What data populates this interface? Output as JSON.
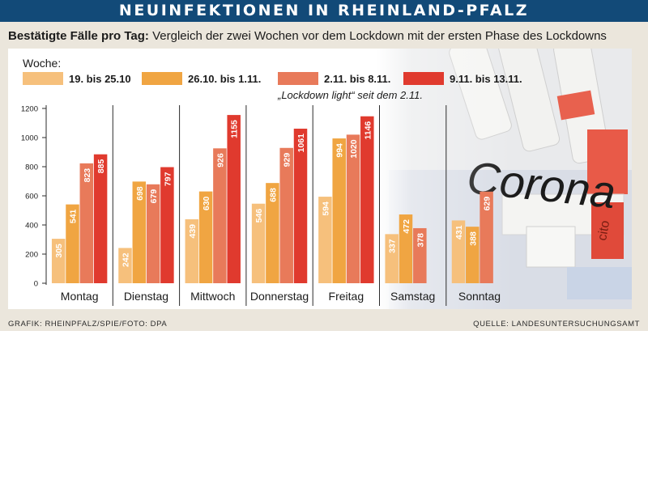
{
  "header": {
    "title": "NEUINFEKTIONEN IN RHEINLAND-PFALZ",
    "subtitle_bold": "Bestätigte Fälle pro Tag:",
    "subtitle_rest": " Vergleich der zwei Wochen vor dem Lockdown mit der ersten Phase des Lockdowns"
  },
  "footer": {
    "credit": "GRAFIK: RHEINPFALZ/SPIE/FOTO: DPA",
    "source": "QUELLE: LANDESUNTERSUCHUNGSAMT"
  },
  "photo": {
    "text": "Corona",
    "label": "cito"
  },
  "chart_data": {
    "type": "bar",
    "legend_title": "Woche:",
    "annotation": "„Lockdown light“ seit dem 2.11.",
    "categories": [
      "Montag",
      "Dienstag",
      "Mittwoch",
      "Donnerstag",
      "Freitag",
      "Samstag",
      "Sonntag"
    ],
    "ylim": [
      0,
      1200
    ],
    "yticks": [
      0,
      200,
      400,
      600,
      800,
      1000,
      1200
    ],
    "grid": false,
    "legend_position": "top",
    "series": [
      {
        "name": "19. bis 25.10",
        "color": "#f6c07c",
        "values": [
          305,
          242,
          439,
          546,
          594,
          337,
          431
        ]
      },
      {
        "name": "26.10. bis 1.11.",
        "color": "#f0a542",
        "values": [
          541,
          698,
          630,
          688,
          994,
          472,
          388
        ]
      },
      {
        "name": "2.11. bis 8.11.",
        "color": "#e87a5a",
        "values": [
          823,
          679,
          926,
          929,
          1020,
          378,
          629
        ]
      },
      {
        "name": "9.11. bis 13.11.",
        "color": "#e03a2e",
        "values": [
          885,
          797,
          1155,
          1061,
          1146,
          null,
          null
        ]
      }
    ]
  }
}
